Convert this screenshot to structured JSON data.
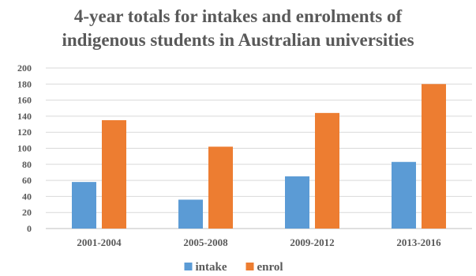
{
  "chart_data": {
    "type": "bar",
    "title_lines": [
      "4-year totals for intakes and enrolments of",
      "indigenous students in Australian universities"
    ],
    "categories": [
      "2001-2004",
      "2005-2008",
      "2009-2012",
      "2013-2016"
    ],
    "series": [
      {
        "name": "intake",
        "color": "#5b9bd5",
        "values": [
          58,
          36,
          65,
          83
        ]
      },
      {
        "name": "enrol",
        "color": "#ed7d31",
        "values": [
          135,
          102,
          144,
          180
        ]
      }
    ],
    "y_ticks": [
      "0",
      "20",
      "40",
      "60",
      "80",
      "100",
      "120",
      "140",
      "160",
      "180",
      "200"
    ],
    "ylim": [
      0,
      200
    ],
    "xlabel": "",
    "ylabel": "",
    "grid": true,
    "legend_position": "bottom"
  }
}
